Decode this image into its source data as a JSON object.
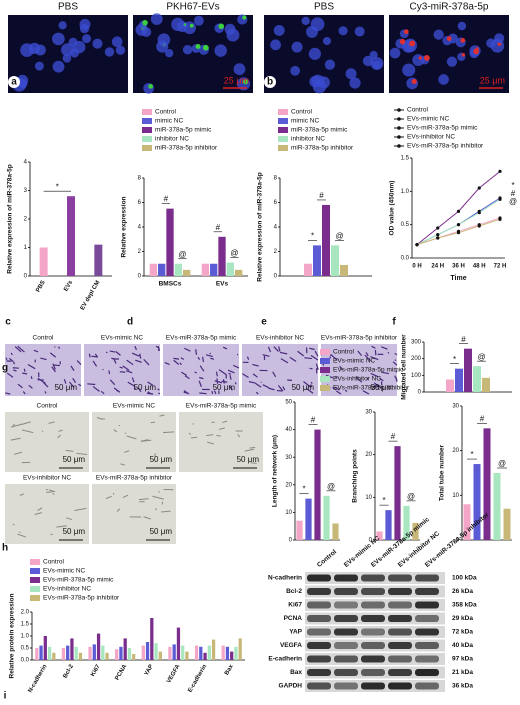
{
  "figure_a": {
    "labels": [
      "PBS",
      "PKH67-EVs"
    ],
    "scale": "25 μm"
  },
  "figure_b": {
    "labels": [
      "PBS",
      "Cy3-miR-378a-5p"
    ],
    "scale": "25 μm"
  },
  "panels": [
    "a",
    "b",
    "c",
    "d",
    "e",
    "f",
    "g",
    "h",
    "i"
  ],
  "migration_images": {
    "labels": [
      "Control",
      "EVs-mimic NC",
      "EVs-miR-378a-5p mimic",
      "EVs-inhibitor NC",
      "EVs-miR-378a-5p inhibitor"
    ],
    "scale": "50 μm"
  },
  "tube_images": {
    "labels": [
      "Control",
      "EVs-mimic NC",
      "EVs-miR-378a-5p mimic",
      "EVs-inhibitor NC",
      "EVs-miR-378a-5p inhibitor"
    ],
    "scale": "50 μm"
  },
  "blot": {
    "lanes": [
      "Control",
      "EVs-mimic NC",
      "EVs-miR-378a-5p mimic",
      "EVs-inhibitor NC",
      "EVs-miR-378a-5p inhibitor"
    ],
    "proteins": [
      "N-cadherin",
      "Bcl-2",
      "Ki67",
      "PCNA",
      "YAP",
      "VEGFA",
      "E-cadherin",
      "Bax",
      "GAPDH"
    ],
    "sizes": [
      "100 kDa",
      "26 kDa",
      "358 kDa",
      "29 kDa",
      "72 kDa",
      "40 kDa",
      "97 kDa",
      "21 kDa",
      "36 kDa"
    ]
  },
  "chart_data": [
    {
      "type": "bar",
      "ylabel": "Relative expression of miR-378a-5p",
      "categories": [
        "PBS",
        "EVs",
        "EV depl CM"
      ],
      "values": [
        1.0,
        2.8,
        1.1
      ],
      "colors": [
        "#f4a6c8",
        "#8a3fa0",
        "#7a4a9a"
      ],
      "ylim": [
        0,
        4
      ],
      "yticks": [
        0,
        1,
        2,
        3,
        4
      ],
      "annotations": [
        "*"
      ]
    },
    {
      "type": "bar",
      "ylabel": "Relative expression",
      "categories": [
        "BMSCs",
        "EVs"
      ],
      "ylim": [
        0,
        8
      ],
      "yticks": [
        0,
        2,
        4,
        6,
        8
      ],
      "annotations": [
        "#",
        "@",
        "#",
        "@"
      ],
      "series": [
        {
          "name": "Control",
          "color": "#f4a6c8",
          "values": [
            1.0,
            1.0
          ]
        },
        {
          "name": "mimic NC",
          "color": "#5b5bd6",
          "values": [
            1.0,
            1.0
          ]
        },
        {
          "name": "miR-378a-5p mimic",
          "color": "#7b2d8e",
          "values": [
            5.5,
            3.2
          ]
        },
        {
          "name": "inhibitor NC",
          "color": "#a8e6c0",
          "values": [
            1.0,
            1.1
          ]
        },
        {
          "name": "miR-378a-5p inhibitor",
          "color": "#c8b878",
          "values": [
            0.5,
            0.5
          ]
        }
      ]
    },
    {
      "type": "bar",
      "ylabel": "Relative expression of miR-378a-5p",
      "categories": [
        null
      ],
      "ylim": [
        0,
        8
      ],
      "yticks": [
        0,
        2,
        4,
        6,
        8
      ],
      "annotations": [
        "*",
        "#",
        "@"
      ],
      "series": [
        {
          "name": "Control",
          "color": "#f4a6c8",
          "values": [
            1.0
          ]
        },
        {
          "name": "mimic NC",
          "color": "#5b5bd6",
          "values": [
            2.5
          ]
        },
        {
          "name": "miR-378a-5p mimic",
          "color": "#7b2d8e",
          "values": [
            5.8
          ]
        },
        {
          "name": "inhibitor NC",
          "color": "#a8e6c0",
          "values": [
            2.5
          ]
        },
        {
          "name": "miR-378a-5p inhibitor",
          "color": "#c8b878",
          "values": [
            0.9
          ]
        }
      ]
    },
    {
      "type": "line",
      "ylabel": "OD value (450nm)",
      "xlabel": "Time",
      "categories": [
        "0 H",
        "24 H",
        "36 H",
        "48 H",
        "72 H"
      ],
      "ylim": [
        0,
        1.5
      ],
      "yticks": [
        {
          "value": 0,
          "label": "0.0"
        },
        {
          "value": 0.5,
          "label": "0.5"
        },
        {
          "value": 1,
          "label": "1.0"
        },
        {
          "value": 1.5,
          "label": "1.5"
        }
      ],
      "annotations": [
        "*",
        "#",
        "@"
      ],
      "series": [
        {
          "name": "Control",
          "color": "#f4a6c8",
          "values": [
            0.2,
            0.3,
            0.4,
            0.5,
            0.6
          ]
        },
        {
          "name": "EVs-mimic NC",
          "color": "#5b5bd6",
          "values": [
            0.2,
            0.35,
            0.5,
            0.7,
            0.9
          ]
        },
        {
          "name": "EVs-miR-378a-5p mimic",
          "color": "#7b2d8e",
          "values": [
            0.2,
            0.45,
            0.7,
            1.05,
            1.3
          ]
        },
        {
          "name": "EVs-inhibitor NC",
          "color": "#a8e6c0",
          "values": [
            0.2,
            0.35,
            0.5,
            0.68,
            0.88
          ]
        },
        {
          "name": "EVs-miR-378a-5p inhibitor",
          "color": "#c8b878",
          "values": [
            0.2,
            0.3,
            0.38,
            0.48,
            0.58
          ]
        }
      ]
    },
    {
      "type": "bar",
      "ylabel": "Migrated cell number",
      "categories": [
        null
      ],
      "ylim": [
        0,
        300
      ],
      "yticks": [
        0,
        100,
        200,
        300
      ],
      "annotations": [
        "*",
        "#",
        "@"
      ],
      "series": [
        {
          "name": "Control",
          "color": "#f4a6c8",
          "values": [
            75
          ]
        },
        {
          "name": "EVs-mimic NC",
          "color": "#5b5bd6",
          "values": [
            140
          ]
        },
        {
          "name": "EVs-miR-378a-5p mimic",
          "color": "#7b2d8e",
          "values": [
            260
          ]
        },
        {
          "name": "EVs-inhibitor NC",
          "color": "#a8e6c0",
          "values": [
            155
          ]
        },
        {
          "name": "EVs-miR-378a-5p inhibitor",
          "color": "#c8b878",
          "values": [
            85
          ]
        }
      ]
    },
    {
      "type": "bar",
      "ylabel": "Length of network (μm)",
      "values": [
        7,
        15,
        40,
        16,
        6
      ],
      "colors": [
        "#f4a6c8",
        "#5b5bd6",
        "#7b2d8e",
        "#a8e6c0",
        "#c8b878"
      ],
      "ylim": [
        0,
        50
      ],
      "yticks": [
        0,
        10,
        20,
        30,
        40,
        50
      ],
      "annotations": [
        "*",
        "#",
        "@"
      ]
    },
    {
      "type": "bar",
      "ylabel": "Branching points",
      "values": [
        2,
        7,
        22,
        8,
        4
      ],
      "colors": [
        "#f4a6c8",
        "#5b5bd6",
        "#7b2d8e",
        "#a8e6c0",
        "#c8b878"
      ],
      "ylim": [
        0,
        30
      ],
      "yticks": [
        0,
        10,
        20,
        30
      ],
      "annotations": [
        "*",
        "#",
        "@"
      ]
    },
    {
      "type": "bar",
      "ylabel": "Total tube number",
      "values": [
        8,
        17,
        25,
        15,
        7
      ],
      "colors": [
        "#f4a6c8",
        "#5b5bd6",
        "#7b2d8e",
        "#a8e6c0",
        "#c8b878"
      ],
      "ylim": [
        0,
        30
      ],
      "yticks": [
        0,
        10,
        20,
        30
      ],
      "annotations": [
        "*",
        "#",
        "@"
      ]
    },
    {
      "type": "bar",
      "ylabel": "Relative protein expression",
      "categories": [
        "N-cadherin",
        "Bcl-2",
        "Ki67",
        "PCNA",
        "YAP",
        "VEGFA",
        "E-cadherin",
        "Bax"
      ],
      "ylim": [
        0,
        2
      ],
      "yticks": [
        {
          "value": 0,
          "label": "0.0"
        },
        {
          "value": 0.5,
          "label": "0.5"
        },
        {
          "value": 1,
          "label": "1.0"
        },
        {
          "value": 1.5,
          "label": "1.5"
        },
        {
          "value": 2,
          "label": "2.0"
        }
      ],
      "series": [
        {
          "name": "Control",
          "color": "#f4a6c8",
          "values": [
            0.5,
            0.5,
            0.55,
            0.45,
            0.6,
            0.55,
            0.6,
            0.6
          ]
        },
        {
          "name": "EVs-mimic NC",
          "color": "#5b5bd6",
          "values": [
            0.6,
            0.6,
            0.65,
            0.55,
            0.75,
            0.65,
            0.55,
            0.55
          ]
        },
        {
          "name": "EVs-miR-378a-5p mimic",
          "color": "#7b2d8e",
          "values": [
            1.0,
            0.9,
            1.1,
            0.9,
            1.75,
            1.35,
            0.3,
            0.35
          ]
        },
        {
          "name": "EVs-inhibitor NC",
          "color": "#a8e6c0",
          "values": [
            0.55,
            0.55,
            0.6,
            0.5,
            0.7,
            0.6,
            0.6,
            0.55
          ]
        },
        {
          "name": "EVs-miR-378a-5p inhibitor",
          "color": "#c8b878",
          "values": [
            0.3,
            0.3,
            0.3,
            0.25,
            0.35,
            0.35,
            0.85,
            0.9
          ]
        }
      ]
    }
  ]
}
